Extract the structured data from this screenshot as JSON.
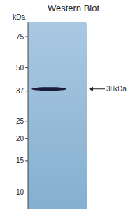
{
  "chart_data": {
    "type": "gel",
    "title": "Western Blot",
    "y_label": "kDa",
    "log": "y",
    "ylim": [
      8,
      90
    ],
    "yticks": [
      75,
      50,
      37,
      25,
      20,
      15,
      10
    ],
    "values": [
      38
    ],
    "color": "#1c1c3a",
    "annotation": "38kDa"
  }
}
